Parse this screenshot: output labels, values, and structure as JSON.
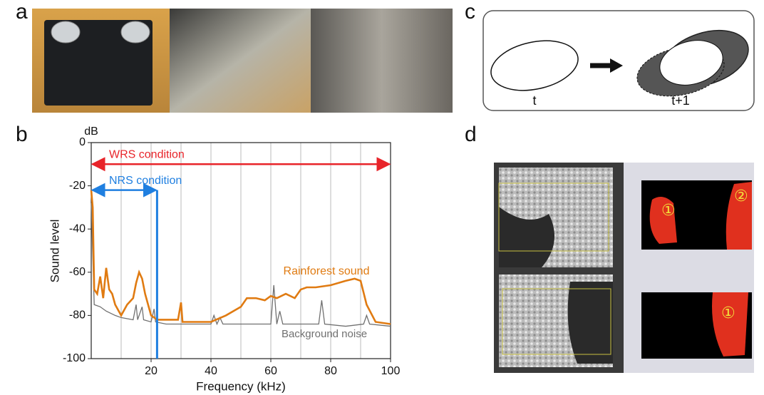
{
  "panel_labels": [
    "a",
    "b",
    "c",
    "d"
  ],
  "panel_c": {
    "left_label": "t",
    "right_label": "t+1"
  },
  "panel_d": {
    "markers": [
      "①",
      "②",
      "①"
    ]
  },
  "chart_data": {
    "type": "line",
    "unit_label": "dB",
    "ylabel": "Sound level",
    "xlabel": "Frequency (kHz)",
    "xlim": [
      0,
      100
    ],
    "ylim": [
      -100,
      0
    ],
    "xticks": [
      20,
      40,
      60,
      80,
      100
    ],
    "yticks": [
      -100,
      -80,
      -60,
      -40,
      -20,
      0
    ],
    "xgrid": [
      10,
      20,
      30,
      40,
      50,
      60,
      70,
      80,
      90
    ],
    "annotations": [
      {
        "text": "WRS condition",
        "x_from": 0,
        "x_to": 100,
        "y": -10,
        "color": "#e8242a"
      },
      {
        "text": "NRS condition",
        "x_from": 0,
        "x_to": 22,
        "y": -22,
        "color": "#1f7fe0"
      }
    ],
    "cutoff": {
      "x": 22,
      "color": "#1f7fe0"
    },
    "series": [
      {
        "name": "Rainforest sound",
        "color": "#e07b12",
        "x": [
          0,
          0.5,
          1,
          2,
          3,
          4,
          5,
          6,
          7,
          8,
          10,
          12,
          14,
          15,
          16,
          17,
          18,
          19,
          20,
          22,
          25,
          29,
          30,
          30.5,
          35,
          40,
          45,
          50,
          52,
          55,
          58,
          60,
          62,
          65,
          68,
          70,
          72,
          75,
          80,
          85,
          88,
          90,
          92,
          95,
          100
        ],
        "values": [
          -22,
          -30,
          -68,
          -70,
          -62,
          -72,
          -58,
          -68,
          -70,
          -75,
          -80,
          -75,
          -72,
          -65,
          -60,
          -63,
          -70,
          -75,
          -80,
          -82,
          -82,
          -82,
          -74,
          -83,
          -83,
          -83,
          -80,
          -76,
          -72,
          -72,
          -73,
          -71,
          -72,
          -70,
          -72,
          -68,
          -67,
          -67,
          -66,
          -64,
          -63,
          -64,
          -75,
          -83,
          -84
        ]
      },
      {
        "name": "Background noise",
        "color": "#707070",
        "x": [
          0,
          1,
          3,
          5,
          8,
          10,
          14,
          15,
          15.5,
          17,
          17.5,
          20,
          21,
          21.5,
          25,
          30,
          40,
          41,
          42,
          43,
          44,
          50,
          60,
          61,
          62,
          63,
          64,
          70,
          76,
          77,
          78,
          85,
          91,
          92,
          93,
          100
        ],
        "values": [
          -28,
          -75,
          -76,
          -78,
          -80,
          -81,
          -82,
          -75,
          -82,
          -76,
          -82,
          -83,
          -77,
          -83,
          -84,
          -84,
          -84,
          -80,
          -84,
          -81,
          -84,
          -84,
          -84,
          -66,
          -84,
          -78,
          -84,
          -84,
          -84,
          -73,
          -84,
          -85,
          -84,
          -80,
          -84,
          -85
        ]
      }
    ]
  }
}
